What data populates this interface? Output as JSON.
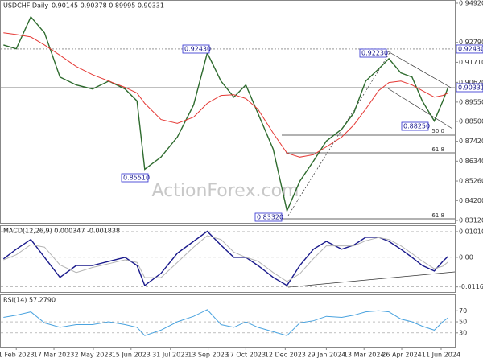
{
  "chart_data": [
    {
      "type": "line",
      "title": "USDCHF,Daily",
      "subtitle": "0.90145 0.90378 0.89995 0.90331",
      "x": [
        "2023-01-17",
        "2023-02-01",
        "2023-02-18",
        "2023-03-06",
        "2023-03-24",
        "2023-04-12",
        "2023-05-01",
        "2023-05-20",
        "2023-06-08",
        "2023-06-22",
        "2023-07-01",
        "2023-07-20",
        "2023-08-08",
        "2023-08-27",
        "2023-09-12",
        "2023-09-28",
        "2023-10-13",
        "2023-10-27",
        "2023-11-10",
        "2023-11-28",
        "2023-12-14",
        "2023-12-29",
        "2024-01-14",
        "2024-01-29",
        "2024-02-16",
        "2024-03-01",
        "2024-03-15",
        "2024-03-30",
        "2024-04-11",
        "2024-04-25",
        "2024-05-08",
        "2024-05-20",
        "2024-06-03",
        "2024-06-13",
        "2024-06-19"
      ],
      "series": [
        {
          "color": "#2e6b2e",
          "values": [
            0.9265,
            0.9244,
            0.9418,
            0.9331,
            0.9091,
            0.9048,
            0.9026,
            0.9069,
            0.9026,
            0.8961,
            0.859,
            0.8656,
            0.8765,
            0.8939,
            0.9222,
            0.9069,
            0.8982,
            0.9048,
            0.8895,
            0.8699,
            0.8364,
            0.8525,
            0.8634,
            0.8743,
            0.8808,
            0.8895,
            0.9069,
            0.9135,
            0.9191,
            0.9113,
            0.9091,
            0.8961,
            0.8852,
            0.8961,
            0.90331
          ]
        },
        {
          "color": "#e53935",
          "values": [
            0.9331,
            0.9322,
            0.9309,
            0.9265,
            0.9209,
            0.9148,
            0.9104,
            0.9069,
            0.9035,
            0.9004,
            0.8948,
            0.886,
            0.8839,
            0.8873,
            0.8948,
            0.8991,
            0.8995,
            0.8974,
            0.8917,
            0.8786,
            0.8678,
            0.8656,
            0.8669,
            0.8712,
            0.8765,
            0.883,
            0.8917,
            0.9017,
            0.9061,
            0.9069,
            0.9048,
            0.9017,
            0.8982,
            0.8991,
            0.9004
          ]
        }
      ],
      "xlim": [
        "2023-01-13",
        "2024-06-27"
      ],
      "ylim": [
        0.8299,
        0.9505
      ],
      "yticks": [
        {
          "value": 0.9492,
          "label": "0.94920"
        },
        {
          "value": 0.9279,
          "label": "0.92790"
        },
        {
          "value": 0.9171,
          "label": "0.91710"
        },
        {
          "value": 0.9062,
          "label": "0.90620"
        },
        {
          "value": 0.8955,
          "label": "0.89550"
        },
        {
          "value": 0.885,
          "label": "0.88500"
        },
        {
          "value": 0.8742,
          "label": "0.87420"
        },
        {
          "value": 0.8634,
          "label": "0.86340"
        },
        {
          "value": 0.8526,
          "label": "0.85260"
        },
        {
          "value": 0.842,
          "label": "0.84200"
        },
        {
          "value": 0.8312,
          "label": "0.83120"
        }
      ],
      "price_markers": [
        {
          "value": 0.9243,
          "label": "0.92430"
        },
        0.90331
      ],
      "boxed_labels": [
        "0.92430",
        "0.85510",
        "0.83320",
        "0.92230",
        "0.88250"
      ],
      "fib_labels": [
        "50.0",
        "61.8",
        "61.8"
      ],
      "watermark": "ActionForex.com"
    },
    {
      "type": "line",
      "title": "MACD(12,26,9) 0.000347 -0.001838",
      "x": [
        "2023-01-17",
        "2023-02-01",
        "2023-02-18",
        "2023-03-06",
        "2023-03-24",
        "2023-04-12",
        "2023-05-01",
        "2023-05-20",
        "2023-06-08",
        "2023-06-22",
        "2023-07-01",
        "2023-07-20",
        "2023-08-08",
        "2023-08-27",
        "2023-09-12",
        "2023-09-28",
        "2023-10-13",
        "2023-10-27",
        "2023-11-10",
        "2023-11-28",
        "2023-12-14",
        "2023-12-29",
        "2024-01-14",
        "2024-01-29",
        "2024-02-16",
        "2024-03-01",
        "2024-03-15",
        "2024-03-30",
        "2024-04-11",
        "2024-04-25",
        "2024-05-08",
        "2024-05-20",
        "2024-06-03",
        "2024-06-13",
        "2024-06-19"
      ],
      "series": [
        {
          "color": "#1a1a8c",
          "values": [
            -0.0006,
            0.0032,
            0.007,
            0,
            -0.0079,
            -0.0032,
            -0.0032,
            -0.0016,
            0,
            -0.0032,
            -0.0111,
            -0.0063,
            0.0016,
            0.0063,
            0.0102,
            0.0048,
            0,
            0,
            -0.0032,
            -0.0079,
            -0.0111,
            -0.0032,
            0.0032,
            0.0063,
            0.0032,
            0.0048,
            0.0079,
            0.0079,
            0.0063,
            0.0032,
            0,
            -0.0032,
            -0.0054,
            -0.0016,
            0.000347
          ]
        },
        {
          "color": "#b4b4b4",
          "values": [
            -0.001,
            0.001,
            0.005,
            0.004,
            -0.003,
            -0.006,
            -0.004,
            -0.0025,
            -0.001,
            -0.002,
            -0.008,
            -0.008,
            -0.002,
            0.004,
            0.0085,
            0.007,
            0.002,
            0,
            -0.0015,
            -0.006,
            -0.0095,
            -0.0065,
            -0.0005,
            0.0045,
            0.0045,
            0.0045,
            0.0065,
            0.0078,
            0.007,
            0.0045,
            0.0015,
            -0.0015,
            -0.0045,
            -0.0035,
            -0.001838
          ]
        }
      ],
      "xlim": [
        "2023-01-13",
        "2024-06-27"
      ],
      "ylim": [
        -0.01365,
        0.0123
      ],
      "yticks": [
        0.010101,
        {
          "value": 0,
          "label": "0.00"
        },
        -0.011645
      ]
    },
    {
      "type": "line",
      "title": "RSI(14) 57.2790",
      "x": [
        "2023-01-17",
        "2023-02-01",
        "2023-02-18",
        "2023-03-06",
        "2023-03-24",
        "2023-04-12",
        "2023-05-01",
        "2023-05-20",
        "2023-06-08",
        "2023-06-22",
        "2023-07-01",
        "2023-07-20",
        "2023-08-08",
        "2023-08-27",
        "2023-09-12",
        "2023-09-28",
        "2023-10-13",
        "2023-10-27",
        "2023-11-10",
        "2023-11-28",
        "2023-12-14",
        "2023-12-29",
        "2024-01-14",
        "2024-01-29",
        "2024-02-16",
        "2024-03-01",
        "2024-03-15",
        "2024-03-30",
        "2024-04-11",
        "2024-04-25",
        "2024-05-08",
        "2024-05-20",
        "2024-06-03",
        "2024-06-13",
        "2024-06-19"
      ],
      "series": [
        {
          "color": "#4aa3df",
          "values": [
            58,
            62,
            68,
            48,
            40,
            45,
            45,
            50,
            45,
            40,
            25,
            35,
            50,
            60,
            72,
            45,
            40,
            50,
            40,
            32,
            25,
            48,
            52,
            60,
            58,
            62,
            68,
            70,
            68,
            55,
            50,
            42,
            35,
            50,
            57.279
          ]
        }
      ],
      "xlim": [
        "2023-01-13",
        "2024-06-27"
      ],
      "ylim": [
        5,
        98
      ],
      "yticks": [
        30,
        50,
        70
      ],
      "xticks": [
        {
          "value": "2023-02-01",
          "label": "1 Feb 2023"
        },
        {
          "value": "2023-03-17",
          "label": "17 Mar 2023"
        },
        {
          "value": "2023-05-02",
          "label": "2 May 2023"
        },
        {
          "value": "2023-06-15",
          "label": "15 Jun 2023"
        },
        {
          "value": "2023-07-31",
          "label": "31 Jul 2023"
        },
        {
          "value": "2023-09-13",
          "label": "13 Sep 2023"
        },
        {
          "value": "2023-10-27",
          "label": "27 Oct 2023"
        },
        {
          "value": "2023-12-12",
          "label": "12 Dec 2023"
        },
        {
          "value": "2024-01-29",
          "label": "29 Jan 2024"
        },
        {
          "value": "2024-03-13",
          "label": "13 Mar 2024"
        },
        {
          "value": "2024-04-26",
          "label": "26 Apr 2024"
        },
        {
          "value": "2024-06-11",
          "label": "11 Jun 2024"
        }
      ]
    }
  ]
}
